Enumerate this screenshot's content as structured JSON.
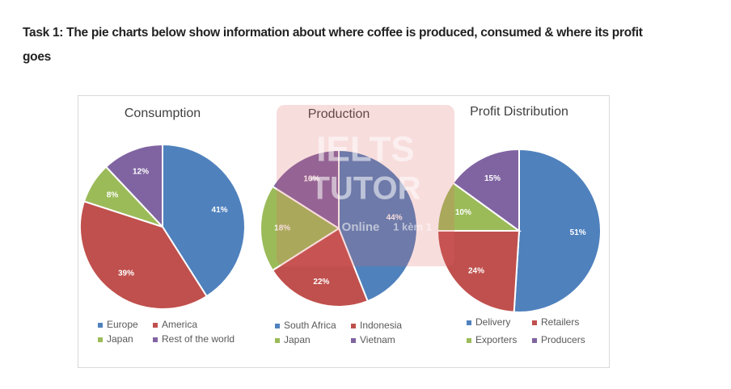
{
  "heading": "Task 1: The pie charts below show information about where coffee is produced, consumed & where its profit goes",
  "watermark": {
    "lines": [
      "IELTS",
      "TUTOR",
      "Online",
      "1 kèm 1"
    ]
  },
  "chart_data": [
    {
      "type": "pie",
      "title": "Consumption",
      "categories": [
        "Europe",
        "America",
        "Japan",
        "Rest of the world"
      ],
      "values": [
        41,
        39,
        8,
        12
      ],
      "value_labels": [
        "41%",
        "39%",
        "8%",
        "12%"
      ],
      "colors": [
        "#4f81bd",
        "#c0504d",
        "#9bbb59",
        "#8064a2"
      ]
    },
    {
      "type": "pie",
      "title": "Production",
      "categories": [
        "South Africa",
        "Indonesia",
        "Japan",
        "Vietnam"
      ],
      "values": [
        44,
        22,
        18,
        16
      ],
      "value_labels": [
        "44%",
        "22%",
        "18%",
        "16%"
      ],
      "colors": [
        "#4f81bd",
        "#c0504d",
        "#9bbb59",
        "#8064a2"
      ]
    },
    {
      "type": "pie",
      "title": "Profit Distribution",
      "categories": [
        "Delivery",
        "Retailers",
        "Exporters",
        "Producers"
      ],
      "values": [
        51,
        24,
        10,
        15
      ],
      "value_labels": [
        "51%",
        "24%",
        "10%",
        "15%"
      ],
      "colors": [
        "#4f81bd",
        "#c0504d",
        "#9bbb59",
        "#8064a2"
      ]
    }
  ]
}
